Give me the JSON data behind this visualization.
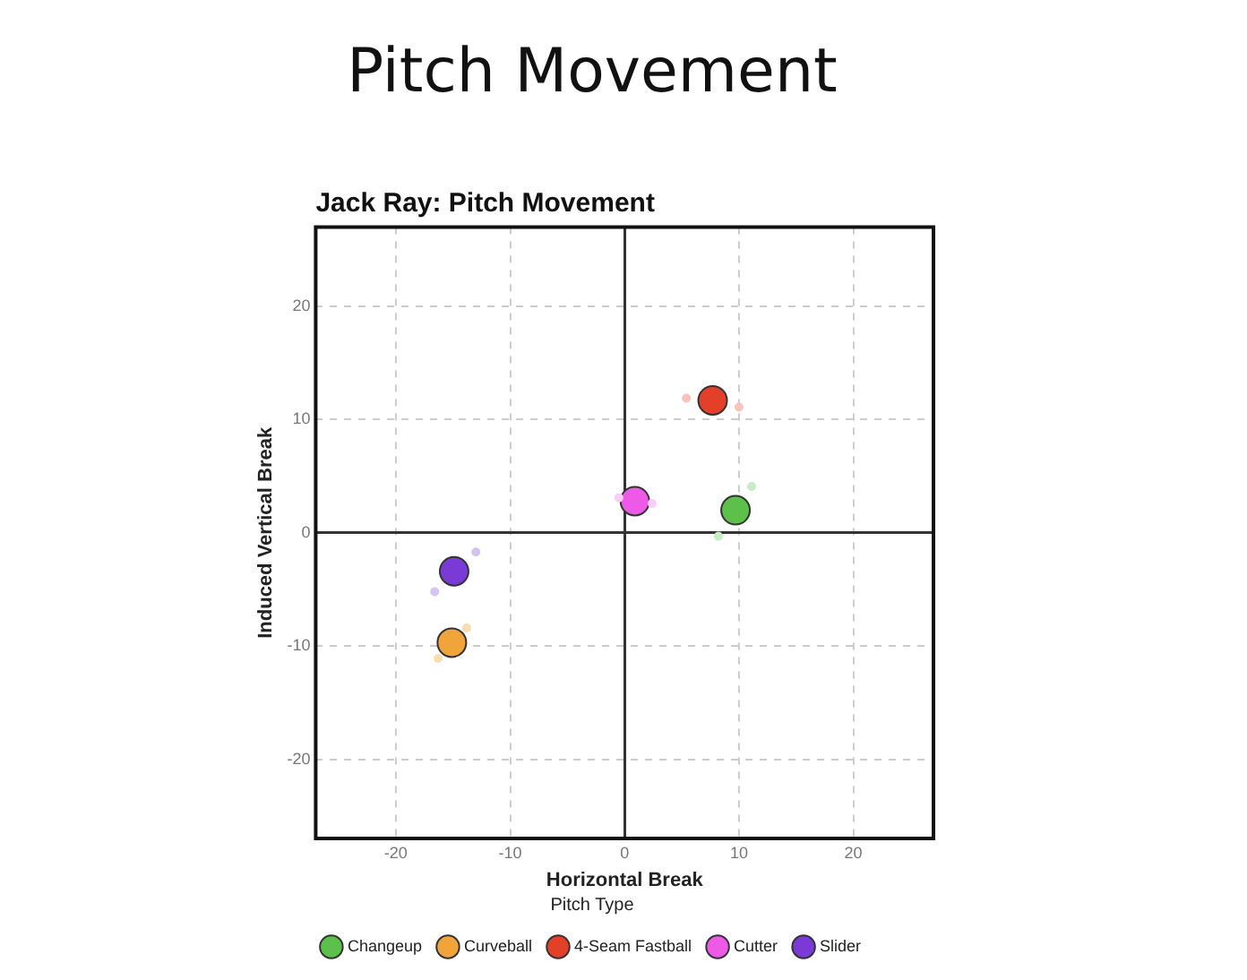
{
  "chart_data": {
    "type": "scatter",
    "title": "Pitch Movement",
    "subtitle": "Jack Ray: Pitch Movement",
    "xlabel": "Horizontal Break",
    "ylabel": "Induced Vertical Break",
    "legend_title": "Pitch Type",
    "series": [
      {
        "color": "#c8ecc4",
        "x": [
          11.1,
          8.2
        ],
        "values": [
          4.1,
          -0.3
        ]
      },
      {
        "color": "#f8ddb0",
        "x": [
          -13.8,
          -16.3
        ],
        "values": [
          -8.4,
          -11.1
        ]
      },
      {
        "color": "#f6c4bc",
        "x": [
          5.4,
          10.0
        ],
        "values": [
          11.9,
          11.1
        ]
      },
      {
        "color": "#f8cdf8",
        "x": [
          -0.5,
          2.4
        ],
        "values": [
          3.1,
          2.6
        ]
      },
      {
        "color": "#d4c4ee",
        "x": [
          -13.0,
          -16.6
        ],
        "values": [
          -1.7,
          -5.2
        ]
      },
      {
        "name": "Changeup",
        "color": "#5cc14a",
        "x": [
          9.7
        ],
        "values": [
          2.0
        ]
      },
      {
        "name": "Curveball",
        "color": "#f0a43a",
        "x": [
          -15.1
        ],
        "values": [
          -9.7
        ]
      },
      {
        "name": "4-Seam Fastball",
        "color": "#e3402a",
        "x": [
          7.7
        ],
        "values": [
          11.7
        ]
      },
      {
        "name": "Cutter",
        "color": "#ee5ae8",
        "x": [
          0.9
        ],
        "values": [
          2.8
        ]
      },
      {
        "name": "Slider",
        "color": "#7a3ad6",
        "x": [
          -14.9
        ],
        "values": [
          -3.4
        ]
      }
    ],
    "xlim": [
      -27,
      27
    ],
    "ylim": [
      -27,
      27
    ],
    "xticks": [
      -20,
      -10,
      0,
      10,
      20
    ],
    "yticks": [
      -20,
      -10,
      0,
      10,
      20
    ],
    "grid": true,
    "legend": "bottom",
    "marker": "circle"
  }
}
